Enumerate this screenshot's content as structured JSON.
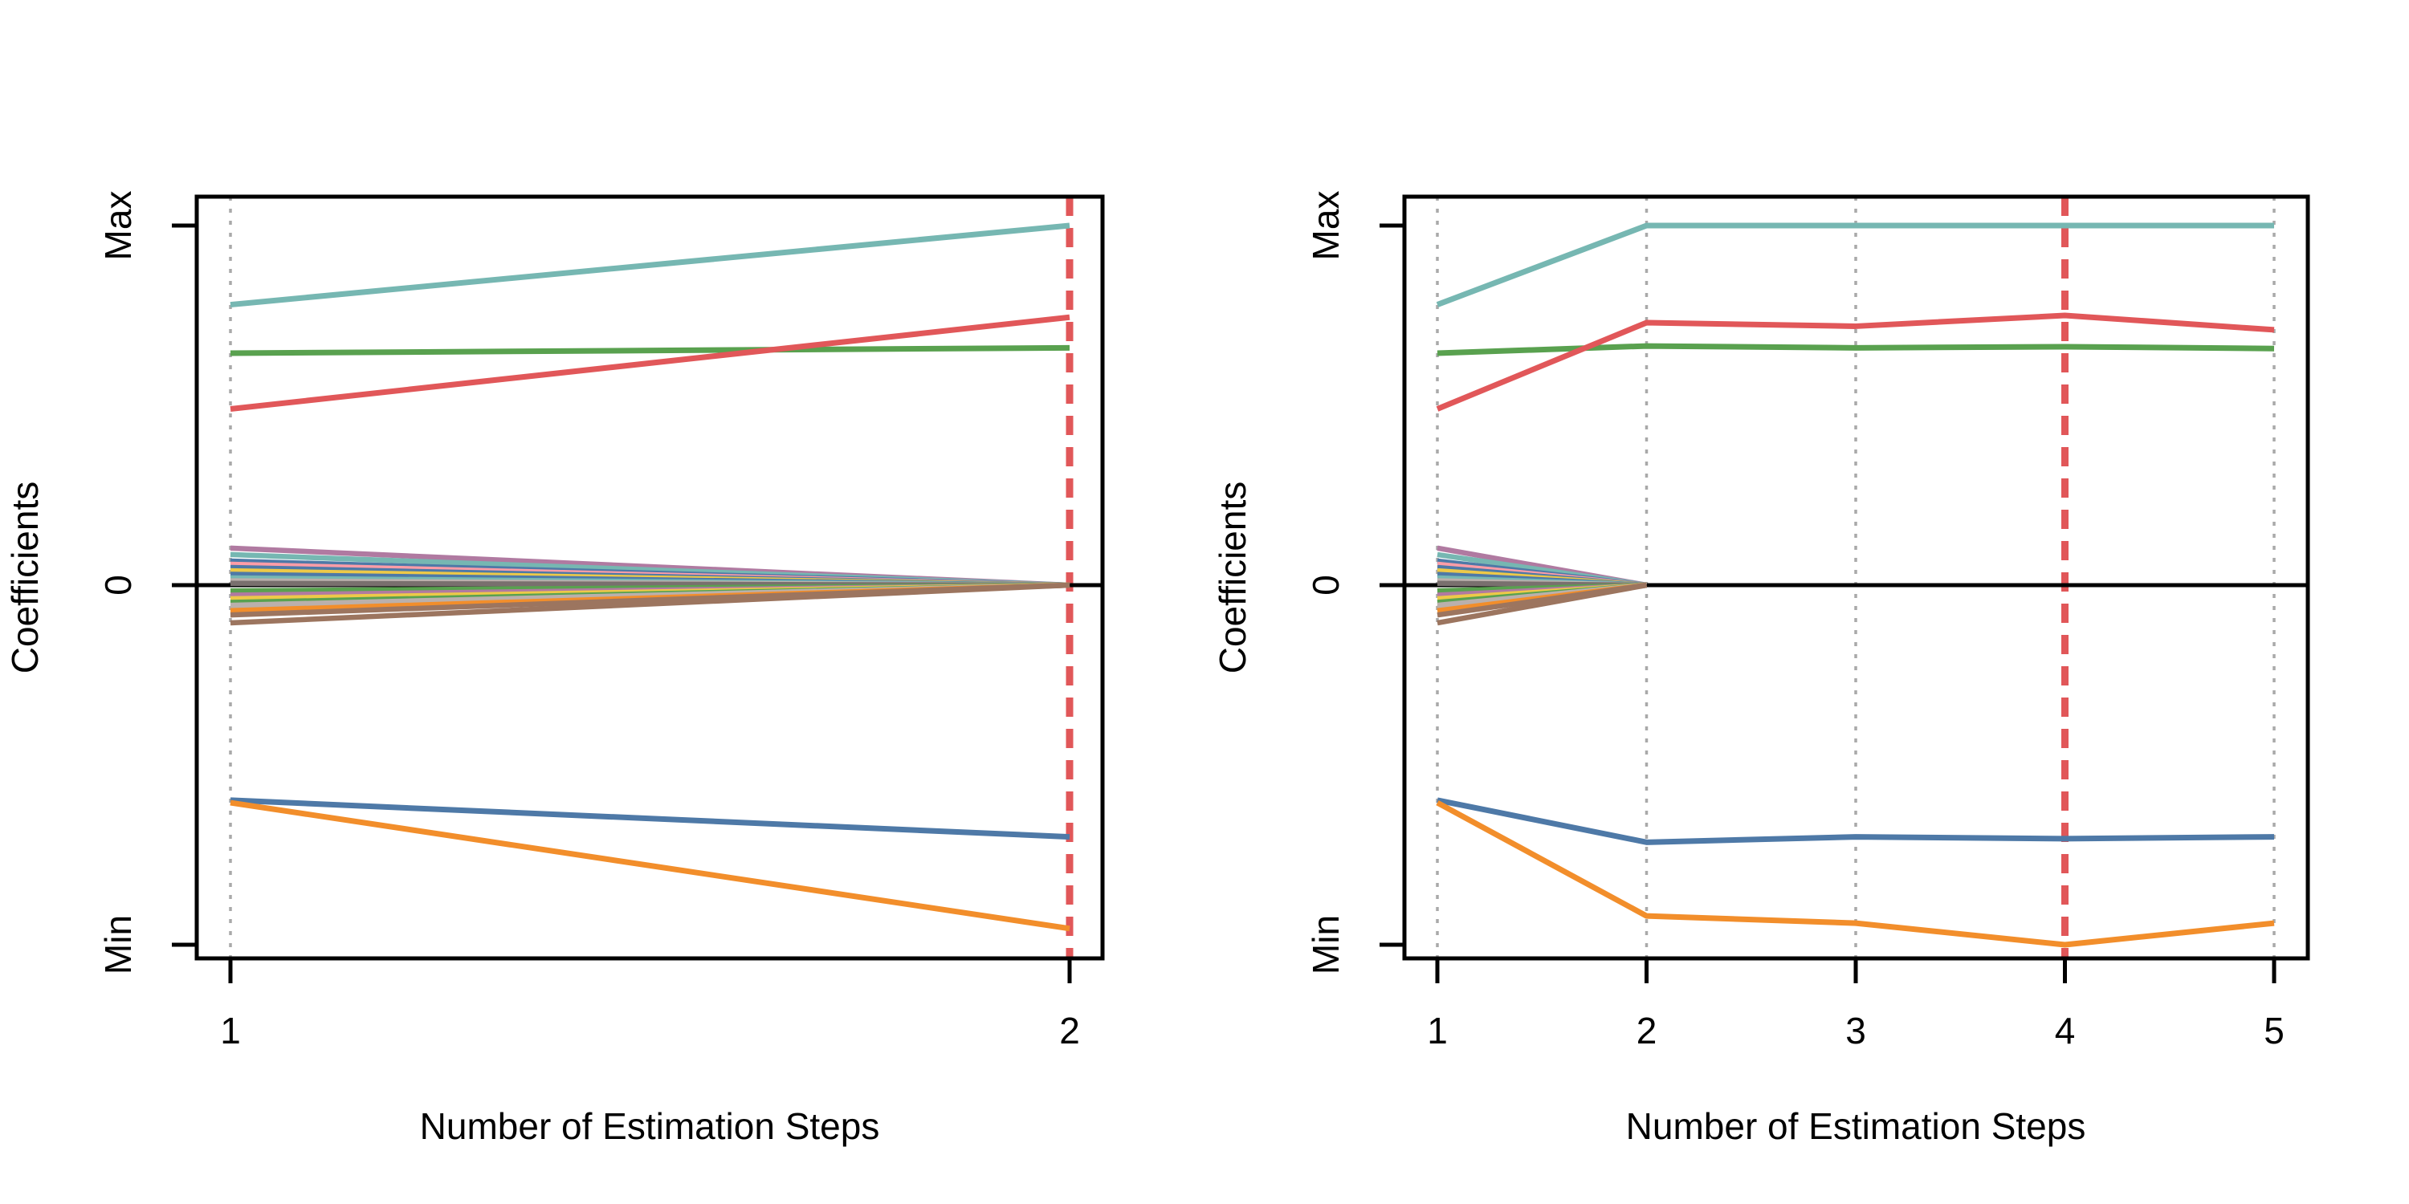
{
  "figure": {
    "background": "#FFFFFF",
    "panels": 2
  },
  "style": {
    "axis_color": "#000000",
    "dotted_guide_color": "#A9A9A9",
    "dashed_highlight_color": "#E15759",
    "zero_line_color": "#000000",
    "text_color": "#000000"
  },
  "shrinking_coefficients": {
    "description": "bundle of coefficient paths starting near zero at step 1 and shrinking exactly to 0 at step 2",
    "end_value": 0,
    "paths": [
      {
        "color": "#B07AA1",
        "start": 0.103
      },
      {
        "color": "#76B7B2",
        "start": 0.085
      },
      {
        "color": "#4E79A7",
        "start": 0.067
      },
      {
        "color": "#FF9DA7",
        "start": 0.058
      },
      {
        "color": "#4E79A7",
        "start": 0.049
      },
      {
        "color": "#EDC948",
        "start": 0.04
      },
      {
        "color": "#4E79A7",
        "start": 0.03
      },
      {
        "color": "#76B7B2",
        "start": 0.02
      },
      {
        "color": "#BAB0AC",
        "start": 0.012
      },
      {
        "color": "#79706E",
        "start": 0.005
      },
      {
        "color": "#59A14F",
        "start": -0.016
      },
      {
        "color": "#B07AA1",
        "start": -0.028
      },
      {
        "color": "#EDC948",
        "start": -0.038
      },
      {
        "color": "#59A14F",
        "start": -0.048
      },
      {
        "color": "#BAB0AC",
        "start": -0.056
      },
      {
        "color": "#BAB0AC",
        "start": -0.063
      },
      {
        "color": "#F28E2B",
        "start": -0.071
      },
      {
        "color": "#9C755F",
        "start": -0.083
      },
      {
        "color": "#9C755F",
        "start": -0.105
      }
    ]
  },
  "chart_data": [
    {
      "name": "left-plot",
      "type": "line",
      "title": "",
      "xlabel": "Number of Estimation Steps",
      "ylabel": "Coefficients",
      "x": [
        1,
        2
      ],
      "xtick_labels": [
        "1",
        "2"
      ],
      "yticks": [
        {
          "label": "Max",
          "value": 1
        },
        {
          "label": "0",
          "value": 0
        },
        {
          "label": "Min",
          "value": -1
        }
      ],
      "ylim": [
        -1.04,
        1.08
      ],
      "grid": "vertical-dotted-at-steps",
      "legend": "none",
      "vlines": [
        {
          "x": 1,
          "style": "dotted"
        },
        {
          "x": 2,
          "style": "dashed"
        }
      ],
      "hlines": [
        {
          "y": 0
        }
      ],
      "series": [
        {
          "name": "coef-path-teal",
          "color": "#76B7B2",
          "values": [
            0.78,
            1.0
          ]
        },
        {
          "name": "coef-path-green",
          "color": "#59A14F",
          "values": [
            0.645,
            0.66
          ]
        },
        {
          "name": "coef-path-red",
          "color": "#E15759",
          "values": [
            0.49,
            0.745
          ]
        },
        {
          "name": "coef-path-blue",
          "color": "#4E79A7",
          "values": [
            -0.598,
            -0.7
          ]
        },
        {
          "name": "coef-path-orange",
          "color": "#F28E2B",
          "values": [
            -0.605,
            -0.955
          ]
        }
      ]
    },
    {
      "name": "right-plot",
      "type": "line",
      "title": "",
      "xlabel": "Number of Estimation Steps",
      "ylabel": "Coefficients",
      "x": [
        1,
        2,
        3,
        4,
        5
      ],
      "xtick_labels": [
        "1",
        "2",
        "3",
        "4",
        "5"
      ],
      "yticks": [
        {
          "label": "Max",
          "value": 1
        },
        {
          "label": "0",
          "value": 0
        },
        {
          "label": "Min",
          "value": -1
        }
      ],
      "ylim": [
        -1.04,
        1.08
      ],
      "grid": "vertical-dotted-at-steps",
      "legend": "none",
      "vlines": [
        {
          "x": 1,
          "style": "dotted"
        },
        {
          "x": 2,
          "style": "dotted"
        },
        {
          "x": 3,
          "style": "dotted"
        },
        {
          "x": 5,
          "style": "dotted"
        },
        {
          "x": 4,
          "style": "dashed"
        }
      ],
      "hlines": [
        {
          "y": 0
        }
      ],
      "series": [
        {
          "name": "coef-path-teal",
          "color": "#76B7B2",
          "values": [
            0.78,
            1.0,
            1.0,
            1.0,
            1.0
          ]
        },
        {
          "name": "coef-path-green",
          "color": "#59A14F",
          "values": [
            0.645,
            0.665,
            0.66,
            0.663,
            0.658
          ]
        },
        {
          "name": "coef-path-red",
          "color": "#E15759",
          "values": [
            0.49,
            0.73,
            0.72,
            0.75,
            0.71
          ]
        },
        {
          "name": "coef-path-blue",
          "color": "#4E79A7",
          "values": [
            -0.598,
            -0.715,
            -0.7,
            -0.705,
            -0.7
          ]
        },
        {
          "name": "coef-path-orange",
          "color": "#F28E2B",
          "values": [
            -0.605,
            -0.92,
            -0.94,
            -1.0,
            -0.94
          ]
        }
      ]
    }
  ]
}
